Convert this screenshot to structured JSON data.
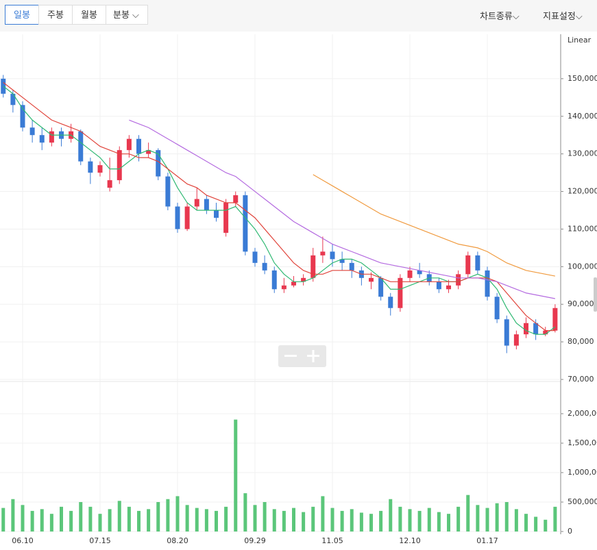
{
  "toolbar": {
    "periods": [
      "일봉",
      "주봉",
      "월봉",
      "분봉"
    ],
    "right": [
      "차트종류",
      "지표설정"
    ]
  },
  "scale_mode": "Linear",
  "chart_data": {
    "type": "candlestick",
    "categories": [
      null,
      null,
      "06.10",
      null,
      null,
      null,
      null,
      null,
      null,
      null,
      "07.15",
      null,
      null,
      null,
      null,
      null,
      null,
      null,
      "08.20",
      null,
      null,
      null,
      null,
      null,
      null,
      null,
      "09.29",
      null,
      null,
      null,
      null,
      null,
      null,
      null,
      "11.05",
      null,
      null,
      null,
      null,
      null,
      null,
      null,
      "12.10",
      null,
      null,
      null,
      null,
      null,
      null,
      null,
      "01.17",
      null,
      null,
      null,
      null,
      null,
      null,
      null
    ],
    "ylim": [
      70000,
      160000
    ],
    "yticks": [
      {
        "value": 70000,
        "label": "70,000"
      },
      {
        "value": 80000,
        "label": "80,000"
      },
      {
        "value": 90000,
        "label": "90,000"
      },
      {
        "value": 100000,
        "label": "100,000"
      },
      {
        "value": 110000,
        "label": "110,000"
      },
      {
        "value": 120000,
        "label": "120,000"
      },
      {
        "value": 130000,
        "label": "130,000"
      },
      {
        "value": 140000,
        "label": "140,000"
      },
      {
        "value": 150000,
        "label": "150,000"
      }
    ],
    "grid": true,
    "up_color": "#e8384f",
    "down_color": "#3a7bd5",
    "candles": [
      [
        150000,
        151000,
        145000,
        146000
      ],
      [
        146000,
        147000,
        141000,
        143000
      ],
      [
        143000,
        144000,
        136000,
        137000
      ],
      [
        137000,
        139000,
        133000,
        135000
      ],
      [
        135000,
        137000,
        131000,
        133000
      ],
      [
        133000,
        137000,
        132000,
        136000
      ],
      [
        136000,
        137000,
        132000,
        134000
      ],
      [
        134000,
        138000,
        133000,
        136000
      ],
      [
        136000,
        136500,
        127000,
        128000
      ],
      [
        128000,
        129000,
        122000,
        125000
      ],
      [
        125000,
        128000,
        124000,
        127000
      ],
      [
        121000,
        129000,
        120000,
        123000
      ],
      [
        123000,
        132000,
        122000,
        131000
      ],
      [
        131000,
        135000,
        129000,
        134000
      ],
      [
        134000,
        135000,
        128000,
        130000
      ],
      [
        130000,
        133000,
        129000,
        131000
      ],
      [
        131000,
        131500,
        123000,
        124000
      ],
      [
        124000,
        125000,
        115000,
        116000
      ],
      [
        116000,
        117000,
        109000,
        110000
      ],
      [
        110000,
        117000,
        109500,
        116000
      ],
      [
        116000,
        121000,
        115000,
        118000
      ],
      [
        118000,
        119000,
        114000,
        115000
      ],
      [
        115000,
        117000,
        112000,
        113000
      ],
      [
        109000,
        118000,
        108000,
        117000
      ],
      [
        117000,
        120000,
        116000,
        119000
      ],
      [
        119000,
        120000,
        103000,
        104000
      ],
      [
        104000,
        105000,
        100000,
        101000
      ],
      [
        101000,
        103000,
        98000,
        99000
      ],
      [
        99000,
        100000,
        93000,
        94000
      ],
      [
        94000,
        97000,
        93000,
        95000
      ],
      [
        95000,
        97500,
        94500,
        96000
      ],
      [
        96000,
        98000,
        95000,
        97000
      ],
      [
        97000,
        105000,
        96000,
        103000
      ],
      [
        103000,
        108000,
        101000,
        104000
      ],
      [
        104000,
        106000,
        100000,
        102000
      ],
      [
        102000,
        104000,
        99000,
        101000
      ],
      [
        101000,
        102000,
        97000,
        99000
      ],
      [
        99000,
        100000,
        95000,
        97000
      ],
      [
        96000,
        98500,
        94000,
        97000
      ],
      [
        97000,
        97500,
        91000,
        92000
      ],
      [
        92000,
        93000,
        87000,
        89000
      ],
      [
        89000,
        98000,
        88000,
        97000
      ],
      [
        97000,
        100000,
        96000,
        99000
      ],
      [
        99000,
        101000,
        97000,
        98000
      ],
      [
        98000,
        99000,
        95000,
        96000
      ],
      [
        96000,
        97000,
        93000,
        94000
      ],
      [
        94000,
        96500,
        93000,
        95000
      ],
      [
        95000,
        99000,
        94000,
        98000
      ],
      [
        98000,
        104000,
        97000,
        103000
      ],
      [
        103000,
        104000,
        98000,
        99000
      ],
      [
        99000,
        100000,
        91000,
        92000
      ],
      [
        92000,
        93000,
        85000,
        86000
      ],
      [
        86000,
        87000,
        77000,
        79000
      ],
      [
        79000,
        83000,
        78000,
        82000
      ],
      [
        82000,
        86500,
        81000,
        85000
      ],
      [
        85000,
        86000,
        80500,
        82000
      ],
      [
        82000,
        84000,
        81500,
        83000
      ],
      [
        83000,
        90000,
        82500,
        89000
      ]
    ],
    "series": [
      {
        "color": "#2eb872",
        "values": [
          148000,
          146000,
          142000,
          139000,
          137000,
          135000,
          135000,
          135000,
          133000,
          131000,
          129000,
          126000,
          126000,
          128000,
          130000,
          131000,
          130000,
          126000,
          121000,
          117000,
          115000,
          115000,
          115000,
          115000,
          116000,
          113000,
          110000,
          106000,
          101000,
          98000,
          96000,
          96000,
          97000,
          99000,
          101000,
          102000,
          102000,
          101000,
          99000,
          97000,
          94000,
          94000,
          95000,
          96000,
          97000,
          97000,
          96000,
          96000,
          97000,
          98000,
          97000,
          94000,
          89000,
          85000,
          83000,
          82000,
          82000,
          84000
        ]
      },
      {
        "color": "#e0433a",
        "values": [
          149000,
          147000,
          145000,
          143000,
          141000,
          139000,
          138000,
          137000,
          136000,
          134000,
          132000,
          131000,
          130000,
          130000,
          129000,
          129000,
          128000,
          126000,
          124000,
          122000,
          121000,
          119000,
          118000,
          117000,
          117000,
          115000,
          113000,
          110000,
          107000,
          104000,
          101000,
          99000,
          98000,
          98000,
          99000,
          99000,
          99000,
          98000,
          98000,
          97000,
          96000,
          96000,
          96000,
          96000,
          96000,
          96000,
          96000,
          96000,
          97000,
          97000,
          97000,
          96000,
          93000,
          90000,
          87000,
          85000,
          83000,
          83000
        ]
      },
      {
        "color": "#b46ae0",
        "values": [
          null,
          null,
          null,
          null,
          null,
          null,
          null,
          null,
          null,
          null,
          null,
          null,
          null,
          139000,
          138000,
          137000,
          135500,
          134000,
          132500,
          131000,
          129500,
          128000,
          126500,
          125000,
          124000,
          122000,
          120000,
          118000,
          116000,
          114000,
          112000,
          110500,
          109000,
          107500,
          106000,
          105000,
          104000,
          103000,
          102000,
          101000,
          100500,
          100000,
          99500,
          99000,
          98500,
          98000,
          97500,
          97000,
          97000,
          97000,
          96500,
          96000,
          95000,
          94000,
          93000,
          92500,
          92000,
          91500
        ]
      },
      {
        "color": "#f09a3e",
        "values": [
          null,
          null,
          null,
          null,
          null,
          null,
          null,
          null,
          null,
          null,
          null,
          null,
          null,
          null,
          null,
          null,
          null,
          null,
          null,
          null,
          null,
          null,
          null,
          null,
          null,
          null,
          null,
          null,
          null,
          null,
          null,
          null,
          124500,
          123000,
          121500,
          120000,
          118500,
          117000,
          115500,
          114000,
          113000,
          112000,
          111000,
          110000,
          109000,
          108000,
          107000,
          106000,
          105500,
          105000,
          104000,
          102500,
          101000,
          100000,
          99000,
          98500,
          98000,
          97500
        ]
      }
    ],
    "volume": {
      "color": "#5bc67a",
      "ylim": [
        0,
        2500000
      ],
      "yticks": [
        0,
        {
          "value": 500000,
          "label": "500,000"
        },
        {
          "value": 1000000,
          "label": "1,000,000"
        },
        {
          "value": 1500000,
          "label": "1,500,000"
        },
        {
          "value": 2000000,
          "label": "2,000,000"
        }
      ],
      "values": [
        400000,
        550000,
        450000,
        350000,
        380000,
        300000,
        420000,
        350000,
        500000,
        420000,
        300000,
        380000,
        520000,
        420000,
        350000,
        380000,
        500000,
        550000,
        600000,
        450000,
        400000,
        380000,
        350000,
        420000,
        1900000,
        650000,
        450000,
        500000,
        380000,
        350000,
        400000,
        330000,
        420000,
        600000,
        400000,
        350000,
        380000,
        320000,
        300000,
        350000,
        550000,
        420000,
        380000,
        350000,
        400000,
        330000,
        300000,
        420000,
        620000,
        450000,
        400000,
        480000,
        500000,
        380000,
        300000,
        250000,
        200000,
        420000
      ]
    }
  }
}
